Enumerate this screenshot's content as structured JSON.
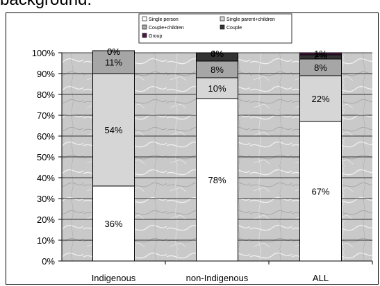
{
  "page": {
    "heading": "background."
  },
  "colors": {
    "single_person": "#ffffff",
    "single_parent_children": "#d6d6d6",
    "couple_children": "#a6a6a6",
    "couple": "#333333",
    "group": "#4a1846",
    "plot_background": "#c8c8c8"
  },
  "chart_data": {
    "type": "bar",
    "stacked": true,
    "categories": [
      "Indigenous",
      "non-Indigenous",
      "ALL"
    ],
    "series": [
      {
        "name": "Single person",
        "values": [
          36,
          78,
          67
        ],
        "labels": [
          "36%",
          "78%",
          "67%"
        ]
      },
      {
        "name": "Single parent+children",
        "values": [
          54,
          10,
          22
        ],
        "labels": [
          "54%",
          "10%",
          "22%"
        ]
      },
      {
        "name": "Couple+children",
        "values": [
          11,
          8,
          8
        ],
        "labels": [
          "11%",
          "8%",
          "8%"
        ]
      },
      {
        "name": "Couple",
        "values": [
          0,
          4,
          2
        ],
        "labels": [
          "0%",
          "4%",
          "2%"
        ]
      },
      {
        "name": "Group",
        "values": [
          0,
          0,
          1
        ],
        "labels": [
          "0%",
          "0%",
          "1%"
        ]
      }
    ],
    "yticks": [
      "0%",
      "10%",
      "20%",
      "30%",
      "40%",
      "50%",
      "60%",
      "70%",
      "80%",
      "90%",
      "100%"
    ],
    "ylim": [
      0,
      100
    ],
    "grid": true,
    "legend": "top"
  }
}
